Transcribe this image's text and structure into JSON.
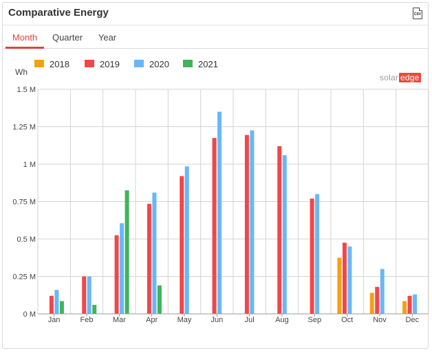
{
  "panel": {
    "title": "Comparative Energy",
    "csv_label": "CSV"
  },
  "tabs": [
    {
      "label": "Month",
      "active": true
    },
    {
      "label": "Quarter",
      "active": false
    },
    {
      "label": "Year",
      "active": false
    }
  ],
  "brand": {
    "text": "solar",
    "emphasis": "edge"
  },
  "colors": {
    "accent": "#e0433d",
    "grid": "#d3d3d3"
  },
  "chart_data": {
    "type": "bar",
    "ylabel": "Wh",
    "ylim": [
      0,
      1500000
    ],
    "yticks": [
      {
        "value": 0,
        "label": "0 M"
      },
      {
        "value": 250000,
        "label": "0.25 M"
      },
      {
        "value": 500000,
        "label": "0.5 M"
      },
      {
        "value": 750000,
        "label": "0.75 M"
      },
      {
        "value": 1000000,
        "label": "1 M"
      },
      {
        "value": 1250000,
        "label": "1.25 M"
      },
      {
        "value": 1500000,
        "label": "1.5 M"
      }
    ],
    "categories": [
      "Jan",
      "Feb",
      "Mar",
      "Apr",
      "May",
      "Jun",
      "Jul",
      "Aug",
      "Sep",
      "Oct",
      "Nov",
      "Dec"
    ],
    "legend_position": "top-left",
    "grid": true,
    "series": [
      {
        "name": "2018",
        "color": "#f5a015",
        "values": [
          null,
          null,
          null,
          null,
          null,
          null,
          null,
          null,
          null,
          375000,
          140000,
          85000
        ]
      },
      {
        "name": "2019",
        "color": "#f24649",
        "values": [
          120000,
          250000,
          525000,
          735000,
          920000,
          1175000,
          1195000,
          1120000,
          770000,
          475000,
          180000,
          120000
        ]
      },
      {
        "name": "2020",
        "color": "#69b7f9",
        "values": [
          160000,
          250000,
          605000,
          810000,
          985000,
          1350000,
          1225000,
          1060000,
          800000,
          450000,
          300000,
          130000
        ]
      },
      {
        "name": "2021",
        "color": "#3fb45b",
        "values": [
          85000,
          60000,
          825000,
          190000,
          null,
          null,
          null,
          null,
          null,
          null,
          null,
          null
        ]
      }
    ]
  }
}
